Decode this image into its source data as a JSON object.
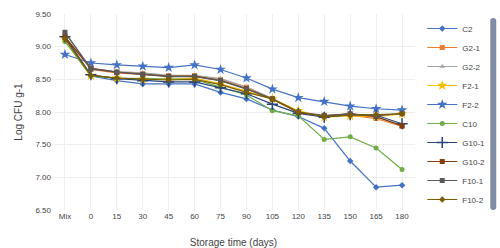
{
  "chart_data": {
    "type": "line",
    "xlabel": "Storage time (days)",
    "ylabel": "Log CFU g-1",
    "categories": [
      "Mix",
      "0",
      "15",
      "30",
      "45",
      "60",
      "75",
      "90",
      "105",
      "120",
      "135",
      "150",
      "165",
      "180"
    ],
    "series": [
      {
        "name": "C2",
        "color": "#4472C4",
        "marker": "diamond",
        "line_style": "solid",
        "values": [
          9.15,
          8.55,
          8.48,
          8.43,
          8.43,
          8.43,
          8.3,
          8.2,
          8.03,
          7.93,
          7.75,
          7.25,
          6.85,
          6.88
        ]
      },
      {
        "name": "G2-1",
        "color": "#ED7D31",
        "marker": "square",
        "line_style": "solid",
        "values": [
          9.15,
          8.65,
          8.6,
          8.58,
          8.55,
          8.55,
          8.5,
          8.38,
          8.2,
          8.0,
          7.95,
          7.95,
          7.9,
          7.78
        ]
      },
      {
        "name": "G2-2",
        "color": "#A5A5A5",
        "marker": "triangle",
        "line_style": "solid",
        "values": [
          9.22,
          8.67,
          8.62,
          8.6,
          8.56,
          8.56,
          8.51,
          8.38,
          8.21,
          8.0,
          7.95,
          7.97,
          7.92,
          7.8
        ]
      },
      {
        "name": "F2-1",
        "color": "#FFC000",
        "marker": "star",
        "line_style": "solid",
        "values": [
          9.13,
          8.56,
          8.52,
          8.5,
          8.5,
          8.52,
          8.43,
          8.32,
          8.2,
          8.02,
          7.92,
          7.94,
          7.93,
          7.97
        ]
      },
      {
        "name": "F2-2",
        "color": "#4472C4",
        "marker": "star",
        "line_style": "solid",
        "values": [
          8.88,
          8.75,
          8.72,
          8.7,
          8.68,
          8.72,
          8.65,
          8.52,
          8.35,
          8.22,
          8.16,
          8.09,
          8.05,
          8.03
        ]
      },
      {
        "name": "C10",
        "color": "#70AD47",
        "marker": "circle",
        "line_style": "solid",
        "values": [
          9.08,
          8.55,
          8.52,
          8.51,
          8.5,
          8.5,
          8.38,
          8.26,
          8.02,
          7.94,
          7.58,
          7.62,
          7.45,
          7.12
        ]
      },
      {
        "name": "G10-1",
        "color": "#264478",
        "marker": "plus",
        "line_style": "solid",
        "values": [
          9.15,
          8.57,
          8.51,
          8.48,
          8.46,
          8.46,
          8.37,
          8.28,
          8.12,
          7.98,
          7.92,
          7.96,
          7.95,
          7.82
        ]
      },
      {
        "name": "G10-2",
        "color": "#843C0C",
        "marker": "square",
        "line_style": "solid",
        "values": [
          9.15,
          8.67,
          8.61,
          8.58,
          8.55,
          8.55,
          8.48,
          8.36,
          8.2,
          7.99,
          7.94,
          7.97,
          7.93,
          7.79
        ]
      },
      {
        "name": "F10-1",
        "color": "#595959",
        "marker": "square",
        "line_style": "solid",
        "values": [
          9.22,
          8.66,
          8.61,
          8.57,
          8.54,
          8.54,
          8.48,
          8.35,
          8.2,
          8.0,
          7.94,
          7.97,
          7.94,
          7.98
        ]
      },
      {
        "name": "F10-2",
        "color": "#7B5C00",
        "marker": "diamond",
        "line_style": "solid",
        "values": [
          9.12,
          8.56,
          8.52,
          8.5,
          8.49,
          8.5,
          8.42,
          8.3,
          8.2,
          8.0,
          7.93,
          7.95,
          7.96,
          7.97
        ]
      }
    ],
    "ylim": [
      6.5,
      9.5
    ],
    "yticks": [
      {
        "value": 6.5,
        "label": "6.50"
      },
      {
        "value": 7.0,
        "label": "7.00"
      },
      {
        "value": 7.5,
        "label": "7.50"
      },
      {
        "value": 8.0,
        "label": "8.00"
      },
      {
        "value": 8.5,
        "label": "8.50"
      },
      {
        "value": 9.0,
        "label": "9.00"
      },
      {
        "value": 9.5,
        "label": "9.50"
      }
    ],
    "grid": true,
    "legend": "right"
  }
}
